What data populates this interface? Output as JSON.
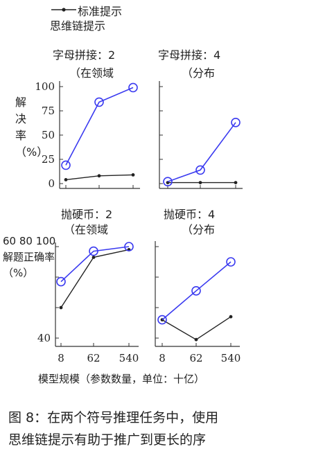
{
  "legend": {
    "standard_label": "标准提示",
    "cot_label": "思维链提示"
  },
  "caption": {
    "line1": "图 8：在两个符号推理任务中，使用",
    "line2": "思维链提示有助于推广到更长的序"
  },
  "colors": {
    "standard": "#222222",
    "cot": "#3a3af0"
  },
  "chart_data": [
    {
      "type": "line",
      "title_line1": "字母拼接：2",
      "title_line2": "（在领域",
      "ylabel": "解决率（%）",
      "ylim": [
        0,
        100
      ],
      "yticks": [
        "0",
        "25",
        "50",
        "75",
        "100"
      ],
      "x": [
        8,
        62,
        540
      ],
      "series": [
        {
          "name": "标准提示",
          "values": [
            4,
            8,
            9
          ]
        },
        {
          "name": "思维链提示",
          "values": [
            19,
            84,
            99
          ]
        }
      ]
    },
    {
      "type": "line",
      "title_line1": "字母拼接：4",
      "title_line2": "（分布",
      "ylim": [
        0,
        100
      ],
      "x": [
        8,
        62,
        540
      ],
      "series": [
        {
          "name": "标准提示",
          "values": [
            1,
            1,
            1
          ]
        },
        {
          "name": "思维链提示",
          "values": [
            2,
            14,
            63
          ]
        }
      ]
    },
    {
      "type": "line",
      "title_line1": "抛硬币：2",
      "title_line2": "（在领域",
      "ylabel": "60 80 100 解题正确率（%）",
      "ylim": [
        40,
        100
      ],
      "yticks": [
        "40"
      ],
      "x": [
        8,
        62,
        540
      ],
      "xticks": [
        "8",
        "62",
        "540"
      ],
      "series": [
        {
          "name": "标准提示",
          "values": [
            60,
            93,
            98
          ]
        },
        {
          "name": "思维链提示",
          "values": [
            77,
            97,
            100
          ]
        }
      ]
    },
    {
      "type": "line",
      "title_line1": "抛硬币：4",
      "title_line2": "（分布",
      "ylim": [
        40,
        100
      ],
      "x": [
        8,
        62,
        540
      ],
      "xticks": [
        "8",
        "62",
        "540"
      ],
      "xlabel": "模型规模（参数数量，单位：十亿）",
      "series": [
        {
          "name": "标准提示",
          "values": [
            52,
            39,
            54
          ]
        },
        {
          "name": "思维链提示",
          "values": [
            52,
            71,
            90
          ]
        }
      ]
    }
  ]
}
